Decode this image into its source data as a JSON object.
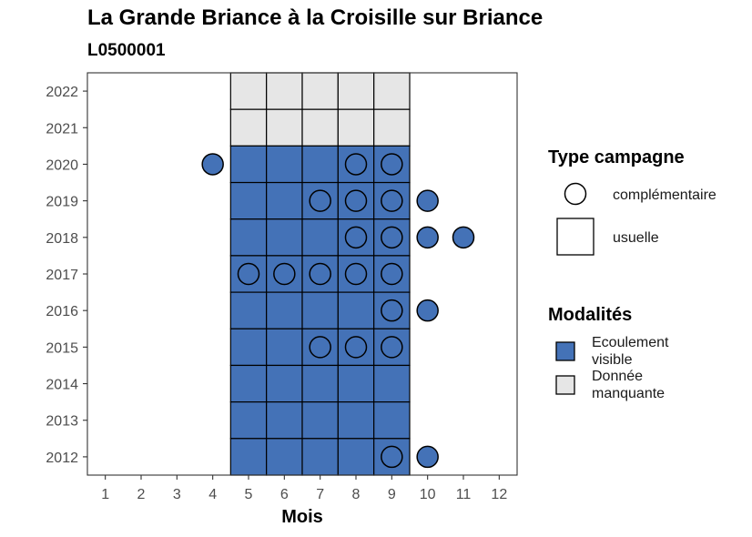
{
  "chart_data": {
    "type": "heatmap",
    "title": "La Grande Briance à la Croisille sur Briance",
    "subtitle": "L0500001",
    "xlabel": "Mois",
    "ylabel": "",
    "x_ticks": [
      "1",
      "2",
      "3",
      "4",
      "5",
      "6",
      "7",
      "8",
      "9",
      "10",
      "11",
      "12"
    ],
    "y_ticks": [
      "2012",
      "2013",
      "2014",
      "2015",
      "2016",
      "2017",
      "2018",
      "2019",
      "2020",
      "2021",
      "2022"
    ],
    "xlim": [
      0.5,
      12.5
    ],
    "ylim": [
      2011.5,
      2022.5
    ],
    "colors": {
      "ecoulement_visible": "#4472b7",
      "donnee_manquante": "#e6e6e6"
    },
    "legend_type": {
      "title": "Type campagne",
      "entries": [
        {
          "key": "complementaire",
          "label": "complémentaire"
        },
        {
          "key": "usuelle",
          "label": "usuelle"
        }
      ]
    },
    "legend_modalites": {
      "title": "Modalités",
      "entries": [
        {
          "key": "ecoulement_visible",
          "label_lines": [
            "Ecoulement",
            "visible"
          ]
        },
        {
          "key": "donnee_manquante",
          "label_lines": [
            "Donnée",
            "manquante"
          ]
        }
      ]
    },
    "tiles": [
      {
        "year": 2022,
        "month": 5,
        "m": "donnee_manquante"
      },
      {
        "year": 2022,
        "month": 6,
        "m": "donnee_manquante"
      },
      {
        "year": 2022,
        "month": 7,
        "m": "donnee_manquante"
      },
      {
        "year": 2022,
        "month": 8,
        "m": "donnee_manquante"
      },
      {
        "year": 2022,
        "month": 9,
        "m": "donnee_manquante"
      },
      {
        "year": 2021,
        "month": 5,
        "m": "donnee_manquante"
      },
      {
        "year": 2021,
        "month": 6,
        "m": "donnee_manquante"
      },
      {
        "year": 2021,
        "month": 7,
        "m": "donnee_manquante"
      },
      {
        "year": 2021,
        "month": 8,
        "m": "donnee_manquante"
      },
      {
        "year": 2021,
        "month": 9,
        "m": "donnee_manquante"
      },
      {
        "year": 2020,
        "month": 5,
        "m": "ecoulement_visible"
      },
      {
        "year": 2020,
        "month": 6,
        "m": "ecoulement_visible"
      },
      {
        "year": 2020,
        "month": 7,
        "m": "ecoulement_visible"
      },
      {
        "year": 2020,
        "month": 8,
        "m": "ecoulement_visible"
      },
      {
        "year": 2020,
        "month": 9,
        "m": "ecoulement_visible"
      },
      {
        "year": 2019,
        "month": 5,
        "m": "ecoulement_visible"
      },
      {
        "year": 2019,
        "month": 6,
        "m": "ecoulement_visible"
      },
      {
        "year": 2019,
        "month": 7,
        "m": "ecoulement_visible"
      },
      {
        "year": 2019,
        "month": 8,
        "m": "ecoulement_visible"
      },
      {
        "year": 2019,
        "month": 9,
        "m": "ecoulement_visible"
      },
      {
        "year": 2018,
        "month": 5,
        "m": "ecoulement_visible"
      },
      {
        "year": 2018,
        "month": 6,
        "m": "ecoulement_visible"
      },
      {
        "year": 2018,
        "month": 7,
        "m": "ecoulement_visible"
      },
      {
        "year": 2018,
        "month": 8,
        "m": "ecoulement_visible"
      },
      {
        "year": 2018,
        "month": 9,
        "m": "ecoulement_visible"
      },
      {
        "year": 2017,
        "month": 5,
        "m": "ecoulement_visible"
      },
      {
        "year": 2017,
        "month": 6,
        "m": "ecoulement_visible"
      },
      {
        "year": 2017,
        "month": 7,
        "m": "ecoulement_visible"
      },
      {
        "year": 2017,
        "month": 8,
        "m": "ecoulement_visible"
      },
      {
        "year": 2017,
        "month": 9,
        "m": "ecoulement_visible"
      },
      {
        "year": 2016,
        "month": 5,
        "m": "ecoulement_visible"
      },
      {
        "year": 2016,
        "month": 6,
        "m": "ecoulement_visible"
      },
      {
        "year": 2016,
        "month": 7,
        "m": "ecoulement_visible"
      },
      {
        "year": 2016,
        "month": 8,
        "m": "ecoulement_visible"
      },
      {
        "year": 2016,
        "month": 9,
        "m": "ecoulement_visible"
      },
      {
        "year": 2015,
        "month": 5,
        "m": "ecoulement_visible"
      },
      {
        "year": 2015,
        "month": 6,
        "m": "ecoulement_visible"
      },
      {
        "year": 2015,
        "month": 7,
        "m": "ecoulement_visible"
      },
      {
        "year": 2015,
        "month": 8,
        "m": "ecoulement_visible"
      },
      {
        "year": 2015,
        "month": 9,
        "m": "ecoulement_visible"
      },
      {
        "year": 2014,
        "month": 5,
        "m": "ecoulement_visible"
      },
      {
        "year": 2014,
        "month": 6,
        "m": "ecoulement_visible"
      },
      {
        "year": 2014,
        "month": 7,
        "m": "ecoulement_visible"
      },
      {
        "year": 2014,
        "month": 8,
        "m": "ecoulement_visible"
      },
      {
        "year": 2014,
        "month": 9,
        "m": "ecoulement_visible"
      },
      {
        "year": 2013,
        "month": 5,
        "m": "ecoulement_visible"
      },
      {
        "year": 2013,
        "month": 6,
        "m": "ecoulement_visible"
      },
      {
        "year": 2013,
        "month": 7,
        "m": "ecoulement_visible"
      },
      {
        "year": 2013,
        "month": 8,
        "m": "ecoulement_visible"
      },
      {
        "year": 2013,
        "month": 9,
        "m": "ecoulement_visible"
      },
      {
        "year": 2012,
        "month": 5,
        "m": "ecoulement_visible"
      },
      {
        "year": 2012,
        "month": 6,
        "m": "ecoulement_visible"
      },
      {
        "year": 2012,
        "month": 7,
        "m": "ecoulement_visible"
      },
      {
        "year": 2012,
        "month": 8,
        "m": "ecoulement_visible"
      },
      {
        "year": 2012,
        "month": 9,
        "m": "ecoulement_visible"
      }
    ],
    "points": [
      {
        "year": 2020,
        "month": 4,
        "m": "ecoulement_visible"
      },
      {
        "year": 2020,
        "month": 8,
        "m": "ecoulement_visible"
      },
      {
        "year": 2020,
        "month": 9,
        "m": "ecoulement_visible"
      },
      {
        "year": 2019,
        "month": 7,
        "m": "ecoulement_visible"
      },
      {
        "year": 2019,
        "month": 8,
        "m": "ecoulement_visible"
      },
      {
        "year": 2019,
        "month": 9,
        "m": "ecoulement_visible"
      },
      {
        "year": 2019,
        "month": 10,
        "m": "ecoulement_visible"
      },
      {
        "year": 2018,
        "month": 8,
        "m": "ecoulement_visible"
      },
      {
        "year": 2018,
        "month": 9,
        "m": "ecoulement_visible"
      },
      {
        "year": 2018,
        "month": 10,
        "m": "ecoulement_visible"
      },
      {
        "year": 2018,
        "month": 11,
        "m": "ecoulement_visible"
      },
      {
        "year": 2017,
        "month": 5,
        "m": "ecoulement_visible"
      },
      {
        "year": 2017,
        "month": 6,
        "m": "ecoulement_visible"
      },
      {
        "year": 2017,
        "month": 7,
        "m": "ecoulement_visible"
      },
      {
        "year": 2017,
        "month": 8,
        "m": "ecoulement_visible"
      },
      {
        "year": 2017,
        "month": 9,
        "m": "ecoulement_visible"
      },
      {
        "year": 2016,
        "month": 9,
        "m": "ecoulement_visible"
      },
      {
        "year": 2016,
        "month": 10,
        "m": "ecoulement_visible"
      },
      {
        "year": 2015,
        "month": 7,
        "m": "ecoulement_visible"
      },
      {
        "year": 2015,
        "month": 8,
        "m": "ecoulement_visible"
      },
      {
        "year": 2015,
        "month": 9,
        "m": "ecoulement_visible"
      },
      {
        "year": 2012,
        "month": 9,
        "m": "ecoulement_visible"
      },
      {
        "year": 2012,
        "month": 10,
        "m": "ecoulement_visible"
      }
    ]
  }
}
